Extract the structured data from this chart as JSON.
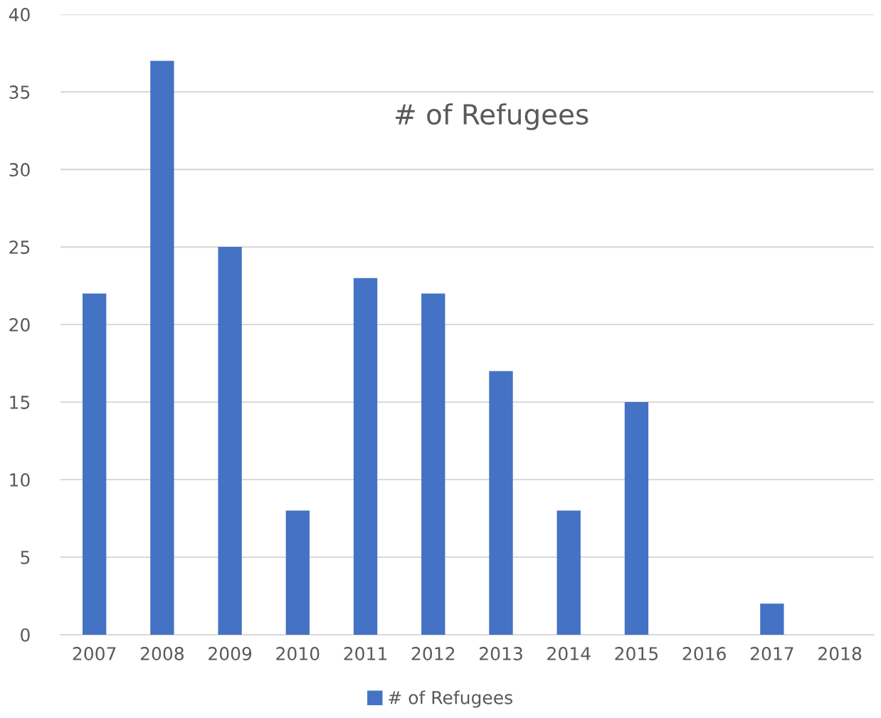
{
  "chart_data": {
    "type": "bar",
    "title": "# of Refugees",
    "categories": [
      "2007",
      "2008",
      "2009",
      "2010",
      "2011",
      "2012",
      "2013",
      "2014",
      "2015",
      "2016",
      "2017",
      "2018"
    ],
    "series": [
      {
        "name": "# of Refugees",
        "color": "#4472c4",
        "values": [
          22,
          37,
          25,
          8,
          23,
          22,
          17,
          8,
          15,
          0,
          2,
          0
        ]
      }
    ],
    "ylim": [
      0,
      40
    ],
    "yticks": [
      0,
      5,
      10,
      15,
      20,
      25,
      30,
      35,
      40
    ],
    "grid": "y",
    "legend": "bottom"
  }
}
